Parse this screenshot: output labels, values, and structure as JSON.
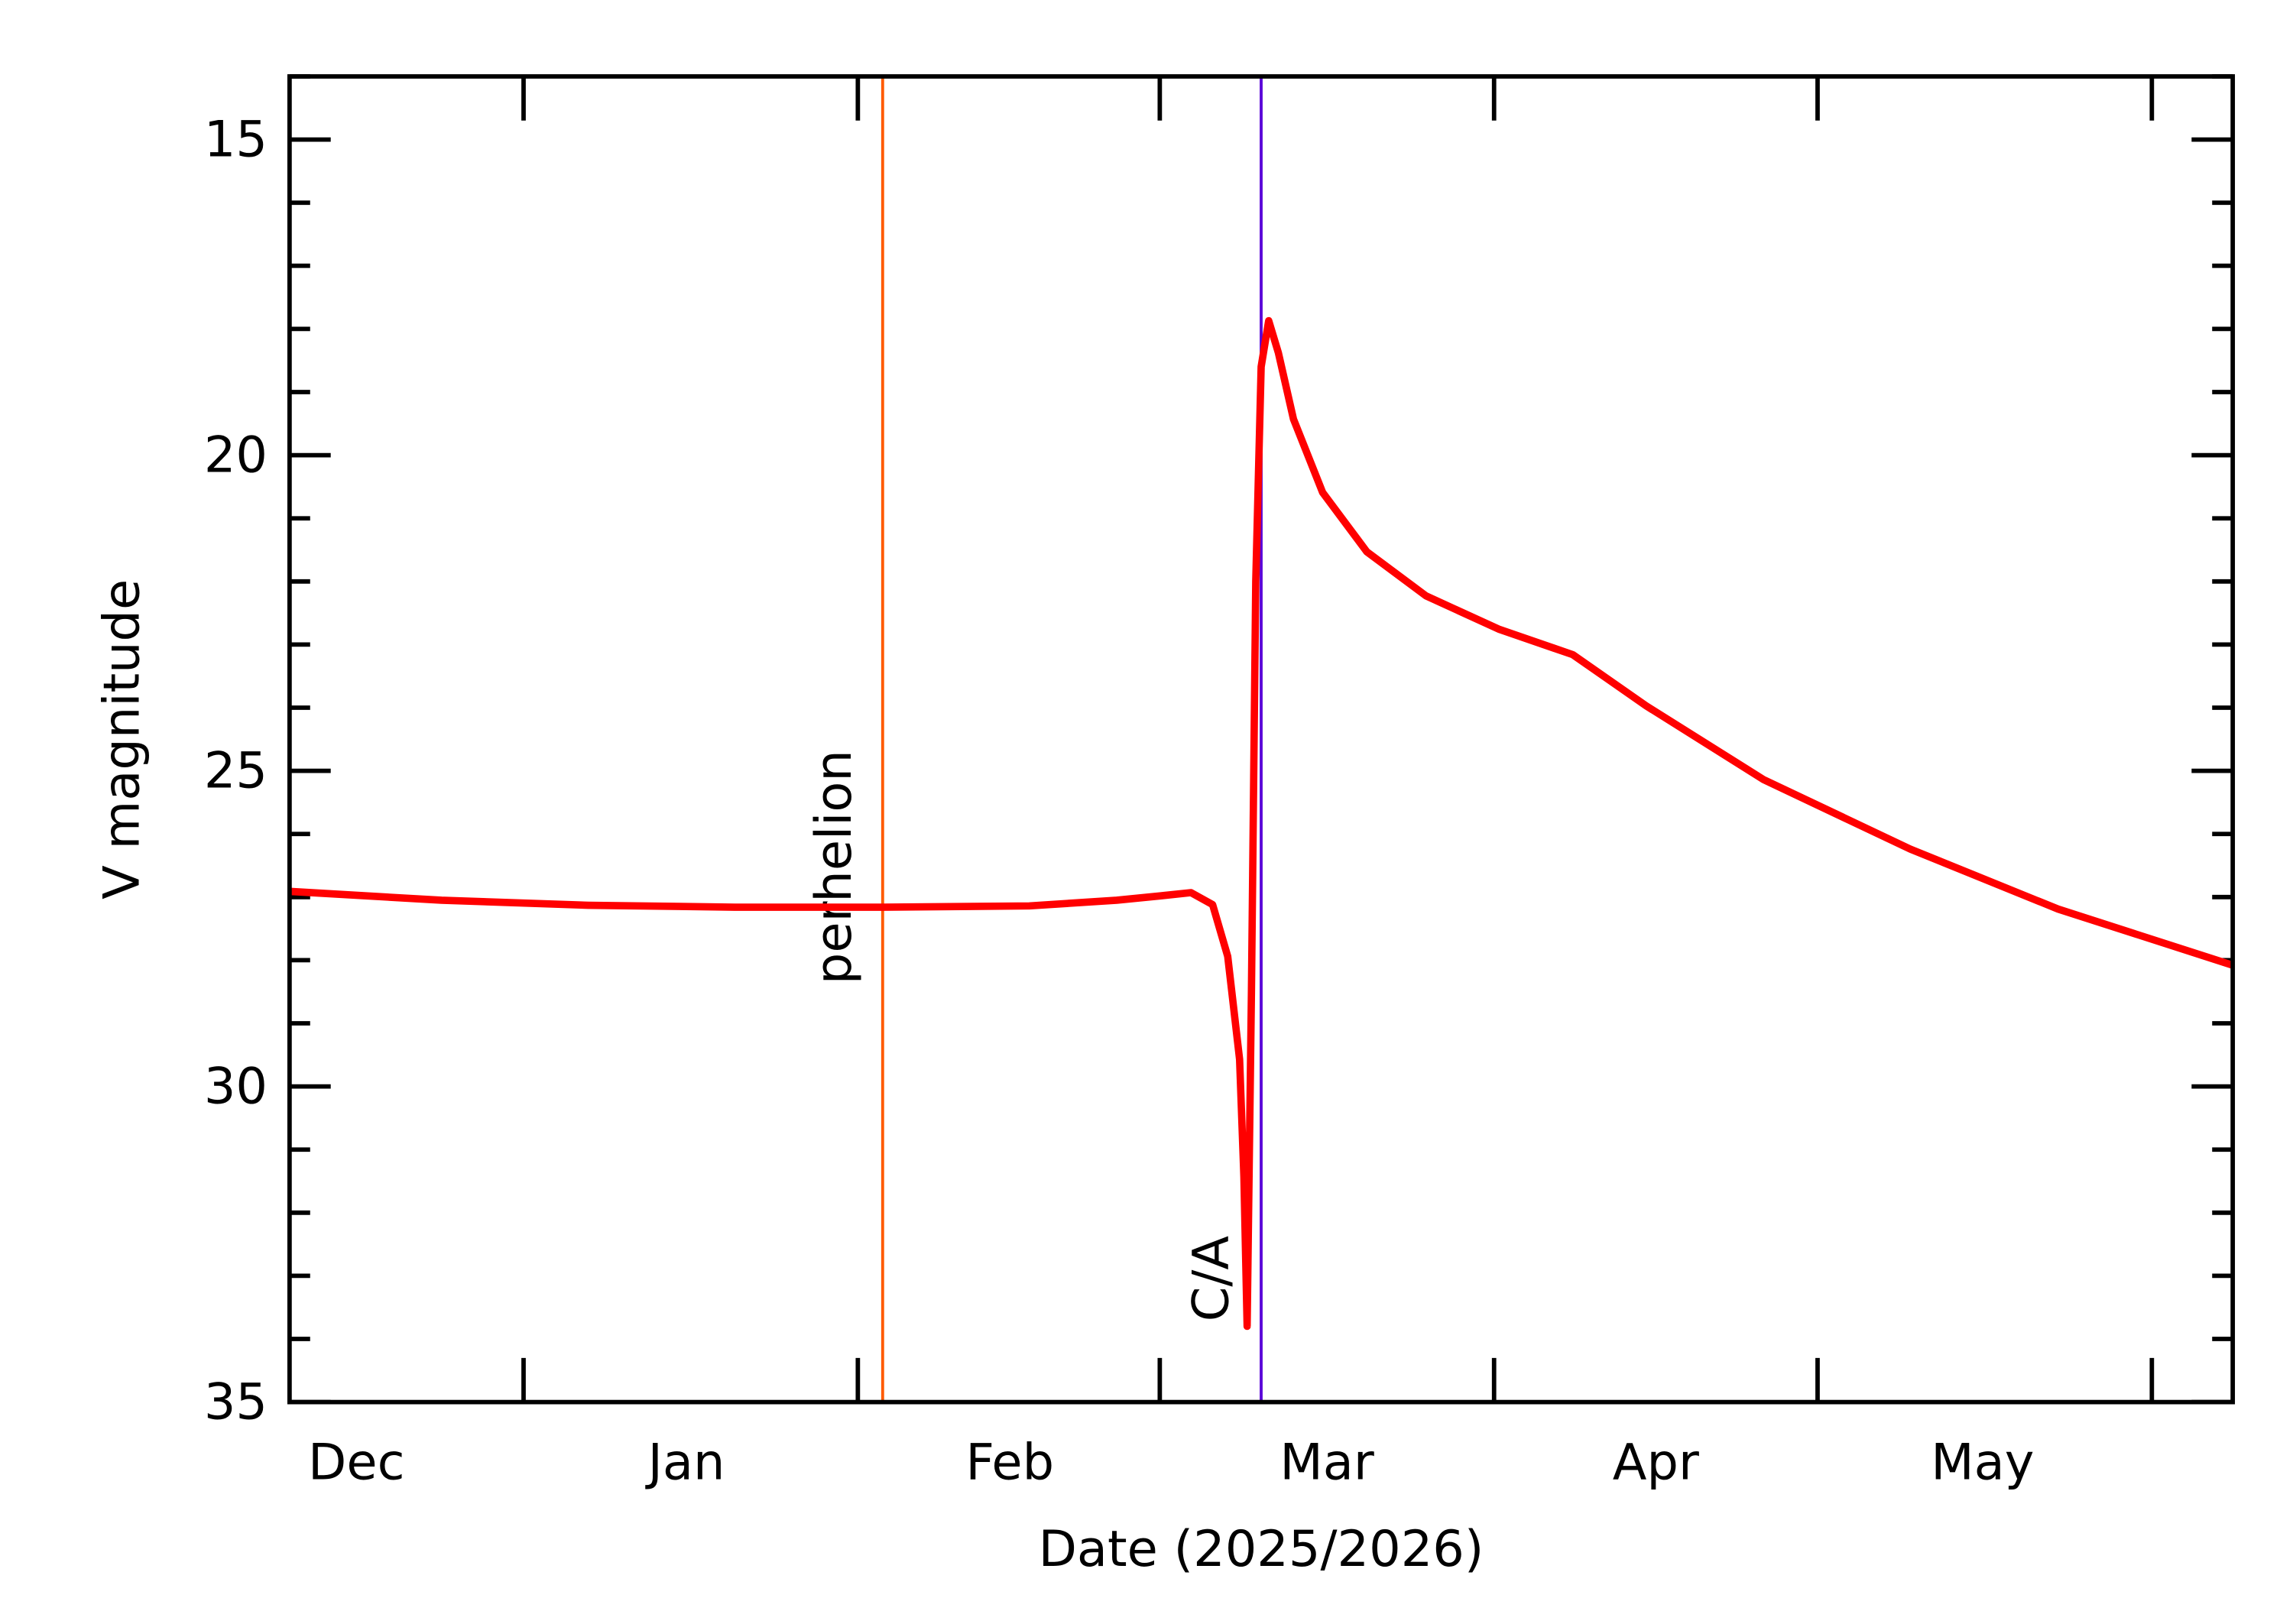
{
  "chart_data": {
    "type": "line",
    "xlabel": "Date (2025/2026)",
    "ylabel": "V magnitude",
    "x": [
      9.3,
      23.4,
      37.0,
      50.6,
      64.3,
      77.9,
      86.0,
      90.1,
      92.9,
      94.9,
      96.3,
      97.4,
      97.8,
      98.1,
      98.5,
      98.9,
      99.4,
      100.1,
      101.0,
      102.4,
      105.1,
      109.2,
      114.7,
      121.5,
      128.3,
      135.1,
      146.0,
      159.6,
      173.3,
      189.5
    ],
    "series": [
      {
        "color": "#ff0000",
        "values": [
          26.91,
          27.05,
          27.13,
          27.16,
          27.16,
          27.14,
          27.05,
          26.98,
          26.93,
          27.12,
          27.94,
          29.57,
          31.43,
          33.8,
          28.5,
          22.0,
          18.6,
          17.87,
          18.38,
          19.43,
          20.59,
          21.53,
          22.23,
          22.76,
          23.16,
          23.97,
          25.14,
          26.24,
          27.19,
          28.08
        ]
      }
    ],
    "xlim": [
      9.3,
      189.5
    ],
    "xticks": [
      {
        "value": 15.5,
        "label": "Dec"
      },
      {
        "value": 46.1,
        "label": "Jan"
      },
      {
        "value": 76.1,
        "label": "Feb"
      },
      {
        "value": 105.5,
        "label": "Mar"
      },
      {
        "value": 136,
        "label": "Apr"
      },
      {
        "value": 166.3,
        "label": "May"
      }
    ],
    "month_starts": [
      31,
      62,
      90,
      121,
      151,
      182
    ],
    "ylim": [
      14,
      35
    ],
    "y_inverted": true,
    "yticks": [
      15,
      20,
      25,
      30,
      35
    ],
    "annotations": [
      {
        "text": "perhelion",
        "x": 64.3,
        "color": "#ff5a00"
      },
      {
        "text": "C/A",
        "x": 99.4,
        "color": "#5a00d8"
      }
    ]
  }
}
